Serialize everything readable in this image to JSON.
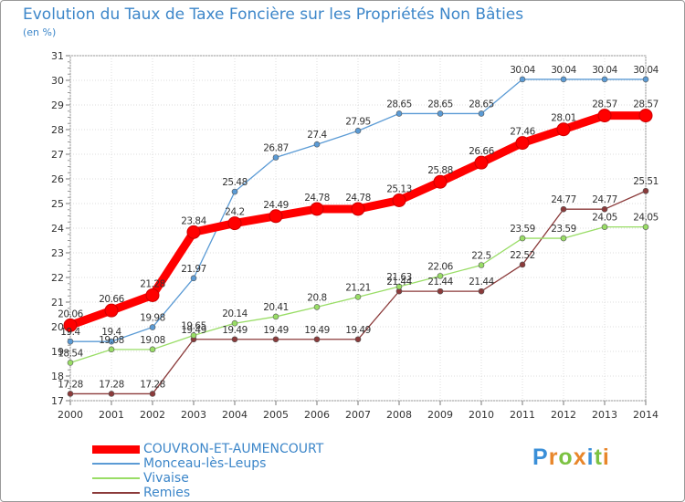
{
  "chart_data": {
    "type": "line",
    "title": "Evolution du Taux de Taxe Foncière sur les Propriétés Non Bâties",
    "ylabel": "(en %)",
    "xlabel": "",
    "x": [
      "2000",
      "2001",
      "2002",
      "2003",
      "2004",
      "2005",
      "2006",
      "2007",
      "2008",
      "2009",
      "2010",
      "2011",
      "2012",
      "2013",
      "2014"
    ],
    "ylim": [
      17,
      31
    ],
    "yticks": [
      "17",
      "18",
      "19",
      "20",
      "21",
      "22",
      "23",
      "24",
      "25",
      "26",
      "27",
      "28",
      "29",
      "30",
      "31"
    ],
    "grid": true,
    "legend_position": "bottom-left",
    "series": [
      {
        "name": "COUVRON-ET-AUMENCOURT",
        "color": "#ff0000",
        "values": [
          20.06,
          20.66,
          21.28,
          23.84,
          24.2,
          24.49,
          24.78,
          24.78,
          25.13,
          25.88,
          26.66,
          27.46,
          28.01,
          28.57,
          28.57
        ],
        "labels": [
          "20.06",
          "20.66",
          "21.28",
          "23.84",
          "24.2",
          "24.49",
          "24.78",
          "24.78",
          "25.13",
          "25.88",
          "26.66",
          "27.46",
          "28.01",
          "28.57",
          "28.57"
        ]
      },
      {
        "name": "Monceau-lès-Leups",
        "color": "#5b9bd5",
        "values": [
          19.4,
          19.4,
          19.98,
          21.97,
          25.48,
          26.87,
          27.4,
          27.95,
          28.65,
          28.65,
          28.65,
          30.04,
          30.04,
          30.04,
          30.04
        ],
        "labels": [
          "19.4",
          "19.4",
          "19.98",
          "21.97",
          "25.48",
          "26.87",
          "27.4",
          "27.95",
          "28.65",
          "28.65",
          "28.65",
          "30.04",
          "30.04",
          "30.04",
          "30.04"
        ]
      },
      {
        "name": "Vivaise",
        "color": "#99dd66",
        "values": [
          18.54,
          19.08,
          19.08,
          19.65,
          20.14,
          20.41,
          20.8,
          21.21,
          21.63,
          22.06,
          22.5,
          23.59,
          23.59,
          24.05,
          24.05
        ],
        "labels": [
          "18.54",
          "19.08",
          "19.08",
          "19.65",
          "20.14",
          "20.41",
          "20.8",
          "21.21",
          "21.63",
          "22.06",
          "22.5",
          "23.59",
          "23.59",
          "24.05",
          "24.05"
        ]
      },
      {
        "name": "Remies",
        "color": "#8b3a3a",
        "values": [
          17.28,
          17.28,
          17.28,
          19.49,
          19.49,
          19.49,
          19.49,
          19.49,
          21.44,
          21.44,
          21.44,
          22.52,
          24.77,
          24.77,
          25.51
        ],
        "labels": [
          "17.28",
          "17.28",
          "17.28",
          "19.49",
          "19.49",
          "19.49",
          "19.49",
          "19.49",
          "21.44",
          "21.44",
          "21.44",
          "22.52",
          "24.77",
          "24.77",
          "25.51"
        ]
      }
    ]
  },
  "logo": {
    "text": "Proxiti"
  }
}
